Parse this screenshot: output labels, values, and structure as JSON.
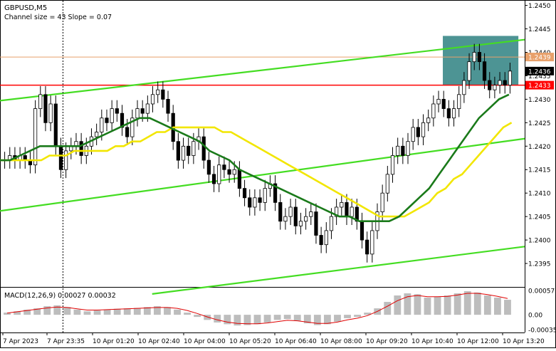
{
  "chart_data": [
    {
      "type": "candlestick",
      "symbol_label": "GBPUSD,M5",
      "indicator_label": "Channel size = 43 Slope = 0.07",
      "y_ticks": [
        "1.2450",
        "1.2445",
        "1.2440",
        "1.2435",
        "1.2430",
        "1.2425",
        "1.2420",
        "1.2415",
        "1.2410",
        "1.2405",
        "1.2400",
        "1.2395"
      ],
      "ylim": [
        1.239,
        1.2451
      ],
      "x_ticks": [
        "7 Apr 2023",
        "7 Apr 23:35",
        "10 Apr 01:20",
        "10 Apr 02:40",
        "10 Apr 04:00",
        "10 Apr 05:20",
        "10 Apr 06:40",
        "10 Apr 08:00",
        "10 Apr 09:20",
        "10 Apr 10:40",
        "10 Apr 12:00",
        "10 Apr 13:20"
      ],
      "price_tags": [
        {
          "value": 1.2439,
          "label": "1.2439",
          "color": "#e8a06a"
        },
        {
          "value": 1.2436,
          "label": "1.2436",
          "color": "#000000"
        },
        {
          "value": 1.2433,
          "label": "1.2433",
          "color": "#ff0000"
        }
      ],
      "horizontal_lines": [
        {
          "value": 1.2439,
          "color": "#e8a06a"
        },
        {
          "value": 1.2433,
          "color": "#ff0000"
        }
      ],
      "trend_lines": [
        {
          "x1": 0,
          "y1": 1.24297,
          "x2": 1,
          "y2": 1.24427,
          "color": "#44dd22"
        },
        {
          "x1": 0,
          "y1": 1.24062,
          "x2": 1,
          "y2": 1.24216,
          "color": "#44dd22"
        },
        {
          "x1": 0.29,
          "y1": 1.23885,
          "x2": 1,
          "y2": 1.23986,
          "color": "#44dd22"
        }
      ],
      "highlight_box": {
        "x1": 0.844,
        "x2": 0.988,
        "y_top": 1.24435,
        "y_bottom": 1.2433,
        "color": "#4d9494"
      },
      "session_divider_x": 0.12,
      "closes": [
        1.2417,
        1.2418,
        1.2417,
        1.2418,
        1.2417,
        1.2416,
        1.2428,
        1.2431,
        1.2425,
        1.2429,
        1.242,
        1.2415,
        1.2419,
        1.242,
        1.2421,
        1.2418,
        1.242,
        1.2422,
        1.2423,
        1.2426,
        1.2425,
        1.2428,
        1.2427,
        1.2424,
        1.2422,
        1.2426,
        1.2428,
        1.2427,
        1.2429,
        1.2431,
        1.2432,
        1.243,
        1.2427,
        1.2421,
        1.2417,
        1.242,
        1.2418,
        1.2421,
        1.2422,
        1.2417,
        1.2414,
        1.2412,
        1.2416,
        1.2415,
        1.2414,
        1.2415,
        1.2411,
        1.2409,
        1.2407,
        1.2409,
        1.2408,
        1.2411,
        1.2412,
        1.2408,
        1.2404,
        1.2405,
        1.2407,
        1.2403,
        1.2404,
        1.2405,
        1.2406,
        1.2401,
        1.2399,
        1.2402,
        1.2405,
        1.2407,
        1.2408,
        1.2405,
        1.2407,
        1.2404,
        1.24,
        1.2397,
        1.2402,
        1.2406,
        1.241,
        1.2414,
        1.2418,
        1.242,
        1.2418,
        1.2421,
        1.2424,
        1.2422,
        1.2425,
        1.2426,
        1.2429,
        1.243,
        1.2428,
        1.2426,
        1.2428,
        1.2431,
        1.2434,
        1.2438,
        1.244,
        1.2438,
        1.2434,
        1.2432,
        1.2433,
        1.2434,
        1.2433,
        1.2436
      ],
      "ma_yellow": [
        1.2417,
        1.2417,
        1.2417,
        1.2417,
        1.2417,
        1.2417,
        1.2418,
        1.2418,
        1.2418,
        1.2419,
        1.2419,
        1.2419,
        1.2419,
        1.2419,
        1.242,
        1.242,
        1.2421,
        1.2421,
        1.2422,
        1.2423,
        1.2423,
        1.2424,
        1.2424,
        1.2424,
        1.2424,
        1.2424,
        1.2424,
        1.2423,
        1.2423,
        1.2422,
        1.2421,
        1.242,
        1.2419,
        1.2418,
        1.2417,
        1.2416,
        1.2415,
        1.2414,
        1.2413,
        1.2412,
        1.2411,
        1.241,
        1.2409,
        1.2408,
        1.2407,
        1.2406,
        1.2405,
        1.2405,
        1.2405,
        1.2405,
        1.2406,
        1.2407,
        1.2408,
        1.241,
        1.2411,
        1.2413,
        1.2414,
        1.2416,
        1.2418,
        1.242,
        1.2422,
        1.2424,
        1.2425
      ],
      "ma_green": [
        1.2417,
        1.2417,
        1.2418,
        1.2419,
        1.242,
        1.242,
        1.242,
        1.242,
        1.242,
        1.2421,
        1.2422,
        1.2423,
        1.2424,
        1.2425,
        1.2426,
        1.2426,
        1.2425,
        1.2424,
        1.2423,
        1.2422,
        1.2421,
        1.2419,
        1.2418,
        1.2417,
        1.2415,
        1.2414,
        1.2413,
        1.2412,
        1.2411,
        1.241,
        1.2409,
        1.2408,
        1.2407,
        1.2406,
        1.2405,
        1.2405,
        1.2404,
        1.2404,
        1.2404,
        1.2404,
        1.2405,
        1.2407,
        1.2409,
        1.2411,
        1.2414,
        1.2417,
        1.242,
        1.2423,
        1.2426,
        1.2428,
        1.243,
        1.2431
      ],
      "macd": {
        "label": "MACD(12,26,9) 0.00027 0.00032",
        "y_ticks": [
          "0.00057",
          "0.00",
          "-0.00035"
        ],
        "ylim": [
          -0.00038,
          0.0006
        ],
        "histogram": [
          5e-05,
          8e-05,
          0.00012,
          0.00015,
          0.0002,
          0.00022,
          0.00018,
          0.00012,
          8e-05,
          0.0001,
          0.00012,
          0.00014,
          0.00015,
          0.00016,
          0.00018,
          0.0002,
          0.00018,
          0.00012,
          5e-05,
          -5e-05,
          -0.00012,
          -0.00018,
          -0.00022,
          -0.00025,
          -0.00024,
          -0.00022,
          -0.00018,
          -0.00012,
          -0.0001,
          -0.00014,
          -0.0002,
          -0.00024,
          -0.00022,
          -0.00016,
          -8e-05,
          -5e-05,
          5e-05,
          0.00015,
          0.0003,
          0.00045,
          0.0005,
          0.00048,
          0.0004,
          0.00042,
          0.00045,
          0.0005,
          0.00055,
          0.00052,
          0.00045,
          0.0004,
          0.00035
        ],
        "signal": [
          4e-05,
          7e-05,
          0.0001,
          0.00013,
          0.00016,
          0.00018,
          0.00017,
          0.00014,
          0.00011,
          0.00011,
          0.00012,
          0.00013,
          0.00014,
          0.00015,
          0.00016,
          0.00017,
          0.00017,
          0.00015,
          0.0001,
          3e-05,
          -5e-05,
          -0.00012,
          -0.00017,
          -0.0002,
          -0.00021,
          -0.00021,
          -0.00019,
          -0.00016,
          -0.00013,
          -0.00014,
          -0.00017,
          -0.0002,
          -0.0002,
          -0.00017,
          -0.00012,
          -8e-05,
          -2e-05,
          8e-05,
          0.0002,
          0.00033,
          0.00042,
          0.00045,
          0.00042,
          0.00042,
          0.00043,
          0.00046,
          0.0005,
          0.0005,
          0.00047,
          0.00043,
          0.00038
        ]
      }
    }
  ]
}
